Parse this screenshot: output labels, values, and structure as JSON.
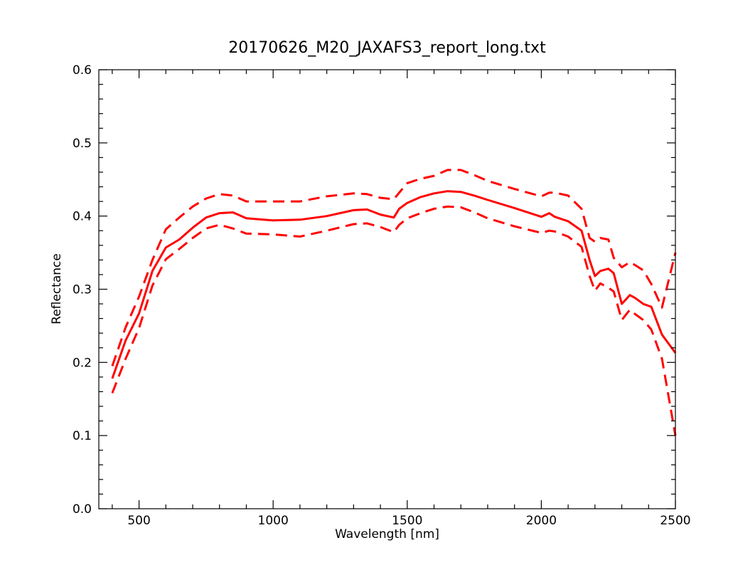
{
  "chart_data": {
    "type": "line",
    "title": "20170626_M20_JAXAFS3_report_long.txt",
    "xlabel": "Wavelength [nm]",
    "ylabel": "Reflectance",
    "xlim": [
      350,
      2500
    ],
    "ylim": [
      0.0,
      0.6
    ],
    "grid": false,
    "x_ticks": [
      500,
      1000,
      1500,
      2000,
      2500
    ],
    "x_tick_labels": [
      "500",
      "1000",
      "1500",
      "2000",
      "2500"
    ],
    "y_ticks": [
      0.0,
      0.1,
      0.2,
      0.3,
      0.4,
      0.5,
      0.6
    ],
    "y_tick_labels": [
      "0.0",
      "0.1",
      "0.2",
      "0.3",
      "0.4",
      "0.5",
      "0.6"
    ],
    "series": [
      {
        "style": "solid",
        "color": "#ff0000",
        "x": [
          400,
          450,
          500,
          550,
          600,
          650,
          700,
          750,
          800,
          850,
          900,
          1000,
          1100,
          1200,
          1300,
          1350,
          1400,
          1450,
          1470,
          1500,
          1550,
          1600,
          1650,
          1700,
          1750,
          1800,
          1900,
          2000,
          2030,
          2050,
          2100,
          2150,
          2180,
          2200,
          2220,
          2250,
          2270,
          2300,
          2330,
          2350,
          2380,
          2410,
          2450,
          2500
        ],
        "y": [
          0.178,
          0.23,
          0.267,
          0.325,
          0.357,
          0.368,
          0.384,
          0.398,
          0.404,
          0.405,
          0.397,
          0.394,
          0.395,
          0.4,
          0.408,
          0.409,
          0.402,
          0.398,
          0.41,
          0.418,
          0.426,
          0.431,
          0.434,
          0.433,
          0.428,
          0.422,
          0.411,
          0.399,
          0.404,
          0.399,
          0.393,
          0.38,
          0.34,
          0.318,
          0.325,
          0.328,
          0.322,
          0.28,
          0.292,
          0.288,
          0.28,
          0.276,
          0.238,
          0.213
        ]
      },
      {
        "style": "dashed",
        "color": "#ff0000",
        "x": [
          400,
          450,
          500,
          550,
          600,
          650,
          700,
          750,
          800,
          850,
          900,
          1000,
          1100,
          1200,
          1300,
          1350,
          1400,
          1450,
          1470,
          1500,
          1550,
          1600,
          1650,
          1700,
          1750,
          1800,
          1900,
          2000,
          2030,
          2050,
          2100,
          2150,
          2180,
          2200,
          2220,
          2250,
          2270,
          2300,
          2330,
          2350,
          2380,
          2410,
          2450,
          2500
        ],
        "y": [
          0.195,
          0.248,
          0.29,
          0.34,
          0.382,
          0.398,
          0.413,
          0.424,
          0.43,
          0.428,
          0.42,
          0.42,
          0.42,
          0.427,
          0.431,
          0.43,
          0.425,
          0.423,
          0.432,
          0.445,
          0.451,
          0.455,
          0.463,
          0.463,
          0.456,
          0.448,
          0.437,
          0.427,
          0.432,
          0.432,
          0.428,
          0.41,
          0.37,
          0.365,
          0.37,
          0.368,
          0.343,
          0.33,
          0.337,
          0.333,
          0.326,
          0.307,
          0.275,
          0.35
        ]
      },
      {
        "style": "dashed",
        "color": "#ff0000",
        "x": [
          400,
          450,
          500,
          550,
          600,
          650,
          700,
          750,
          800,
          850,
          900,
          1000,
          1100,
          1200,
          1300,
          1350,
          1400,
          1450,
          1470,
          1500,
          1550,
          1600,
          1650,
          1700,
          1750,
          1800,
          1900,
          2000,
          2030,
          2050,
          2100,
          2150,
          2180,
          2200,
          2220,
          2250,
          2270,
          2300,
          2330,
          2350,
          2380,
          2410,
          2450,
          2500
        ],
        "y": [
          0.158,
          0.205,
          0.247,
          0.305,
          0.341,
          0.355,
          0.37,
          0.383,
          0.388,
          0.383,
          0.376,
          0.375,
          0.372,
          0.38,
          0.389,
          0.39,
          0.385,
          0.378,
          0.388,
          0.397,
          0.404,
          0.41,
          0.413,
          0.412,
          0.405,
          0.397,
          0.386,
          0.377,
          0.38,
          0.379,
          0.372,
          0.358,
          0.318,
          0.298,
          0.308,
          0.302,
          0.297,
          0.258,
          0.272,
          0.266,
          0.258,
          0.245,
          0.205,
          0.1
        ]
      }
    ]
  }
}
